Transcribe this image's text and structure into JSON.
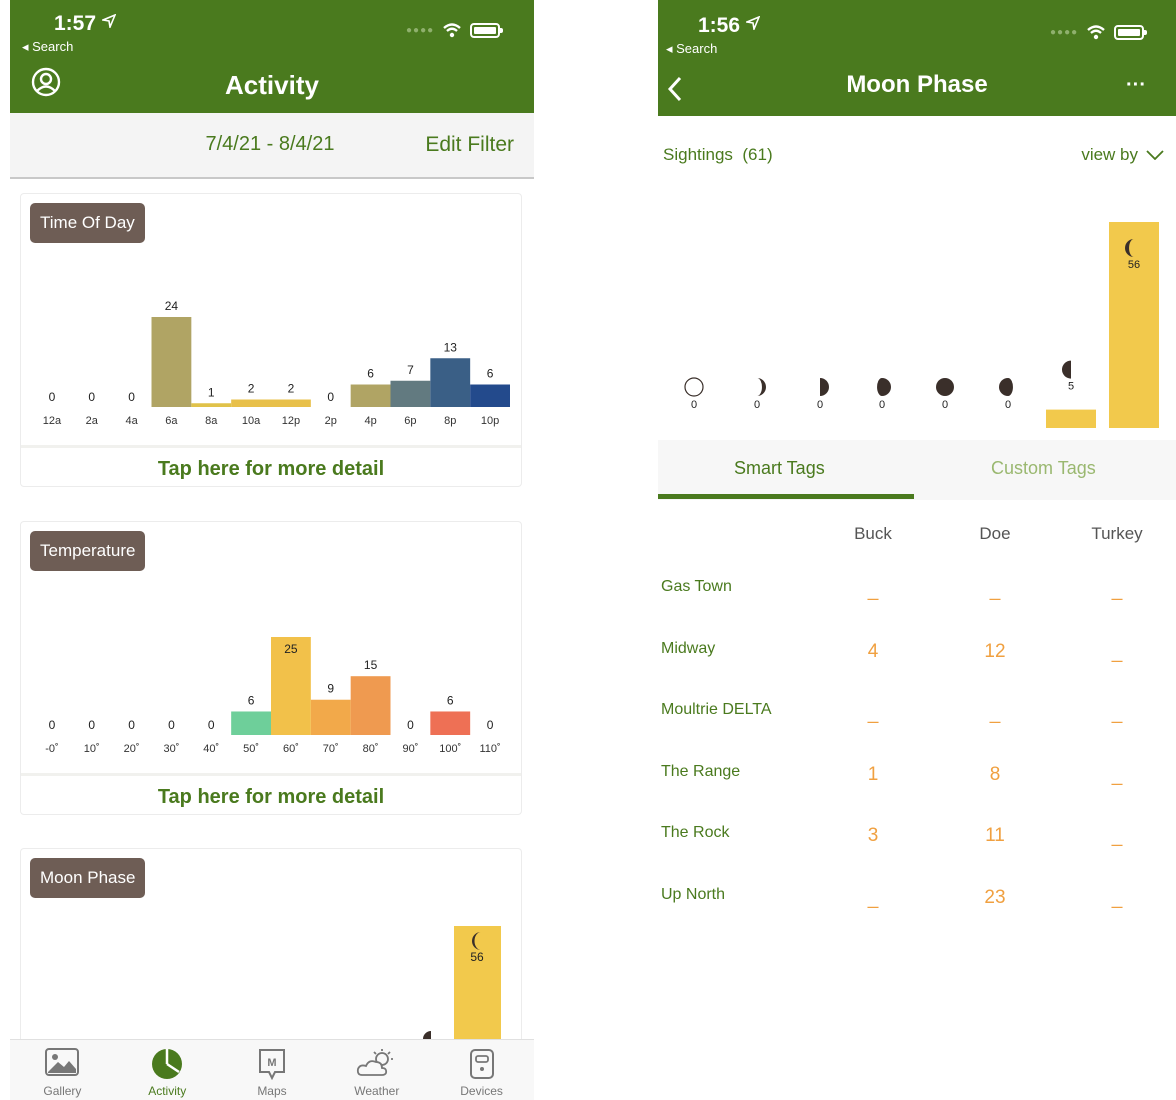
{
  "left": {
    "status": {
      "time": "1:57",
      "back": "Search"
    },
    "title": "Activity",
    "filter": {
      "date_range": "7/4/21 - 8/4/21",
      "edit": "Edit Filter"
    },
    "cards": {
      "time_of_day": {
        "label": "Time Of Day",
        "detail": "Tap here for more detail"
      },
      "temperature": {
        "label": "Temperature",
        "detail": "Tap here for more detail"
      },
      "moon_phase": {
        "label": "Moon Phase"
      }
    },
    "tabbar": [
      {
        "label": "Gallery",
        "icon": "gallery-icon",
        "active": false
      },
      {
        "label": "Activity",
        "icon": "activity-pie-icon",
        "active": true
      },
      {
        "label": "Maps",
        "icon": "maps-icon",
        "active": false
      },
      {
        "label": "Weather",
        "icon": "weather-icon",
        "active": false
      },
      {
        "label": "Devices",
        "icon": "devices-icon",
        "active": false
      }
    ]
  },
  "right": {
    "status": {
      "time": "1:56",
      "back": "Search"
    },
    "title": "Moon Phase",
    "more": "···",
    "sightings_label": "Sightings",
    "sightings_count": "(61)",
    "view_by": "view by",
    "tabs": {
      "smart": "Smart Tags",
      "custom": "Custom Tags"
    },
    "table": {
      "columns": [
        "Buck",
        "Doe",
        "Turkey"
      ],
      "rows": [
        {
          "name": "Gas Town",
          "values": [
            "_",
            "_",
            "_"
          ]
        },
        {
          "name": "Midway",
          "values": [
            "4",
            "12",
            "_"
          ]
        },
        {
          "name": "Moultrie DELTA",
          "values": [
            "_",
            "_",
            "_"
          ]
        },
        {
          "name": "The Range",
          "values": [
            "1",
            "8",
            "_"
          ]
        },
        {
          "name": "The Rock",
          "values": [
            "3",
            "11",
            "_"
          ]
        },
        {
          "name": "Up North",
          "values": [
            "_",
            "23",
            "_"
          ]
        }
      ]
    }
  },
  "colors": {
    "brand_green": "#4a7a1e",
    "tag_brown": "#6e5d55",
    "accent_orange": "#f0a040"
  },
  "chart_data": [
    {
      "type": "bar",
      "title": "Time Of Day",
      "categories": [
        "12a",
        "2a",
        "4a",
        "6a",
        "8a",
        "10a",
        "12p",
        "2p",
        "4p",
        "6p",
        "8p",
        "10p"
      ],
      "values": [
        0,
        0,
        0,
        24,
        1,
        2,
        2,
        0,
        6,
        7,
        13,
        6
      ],
      "colors": [
        "#b0a464",
        "#b0a464",
        "#b0a464",
        "#b0a464",
        "#e0c24a",
        "#e8c04a",
        "#e8c04a",
        "#b0a464",
        "#b0a464",
        "#627a80",
        "#3a5f86",
        "#234a8c"
      ]
    },
    {
      "type": "bar",
      "title": "Temperature",
      "categories": [
        "-0˚",
        "10˚",
        "20˚",
        "30˚",
        "40˚",
        "50˚",
        "60˚",
        "70˚",
        "80˚",
        "90˚",
        "100˚",
        "110˚"
      ],
      "values": [
        0,
        0,
        0,
        0,
        0,
        6,
        25,
        9,
        15,
        0,
        6,
        0
      ],
      "colors": [
        "#6ecf9a",
        "#6ecf9a",
        "#6ecf9a",
        "#6ecf9a",
        "#6ecf9a",
        "#6ecf9a",
        "#f2c14a",
        "#f2a94a",
        "#ef9a50",
        "#ee7a55",
        "#ee7055",
        "#ee7055"
      ]
    },
    {
      "type": "bar",
      "title": "Moon Phase",
      "categories": [
        "new",
        "waxing-crescent",
        "first-quarter",
        "waxing-gibbous",
        "full",
        "waning-gibbous",
        "last-quarter",
        "waning-crescent"
      ],
      "values": [
        0,
        0,
        0,
        0,
        0,
        0,
        5,
        56
      ],
      "colors": [
        "#f2c94c",
        "#f2c94c",
        "#f2c94c",
        "#f2c94c",
        "#f2c94c",
        "#f2c94c",
        "#f2c94c",
        "#f2c94c"
      ]
    }
  ]
}
